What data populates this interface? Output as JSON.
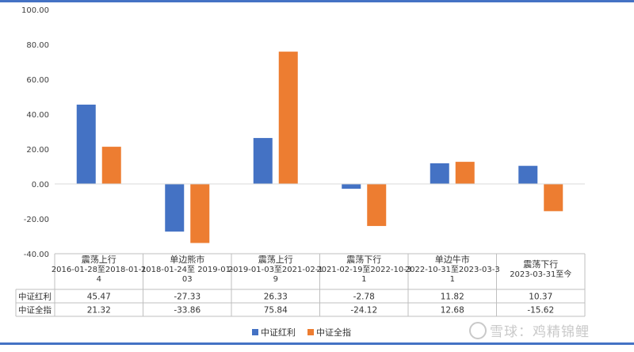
{
  "chart_data": {
    "type": "bar",
    "categories": [
      [
        "震荡上行",
        "2016-01-28至2018-01-1",
        "4"
      ],
      [
        "单边熊市",
        "2018-01-24至 2019-01-",
        "03"
      ],
      [
        "震荡上行",
        "2019-01-03至2021-02-1",
        "9"
      ],
      [
        "震荡下行",
        "2021-02-19至2022-10-3",
        "1"
      ],
      [
        "单边牛市",
        "2022-10-31至2023-03-3",
        "1"
      ],
      [
        "震荡下行",
        "2023-03-31至今"
      ]
    ],
    "series": [
      {
        "name": "中证红利",
        "color": "#4472c4",
        "values": [
          45.47,
          -27.33,
          26.33,
          -2.78,
          11.82,
          10.37
        ]
      },
      {
        "name": "中证全指",
        "color": "#ed7d31",
        "values": [
          21.32,
          -33.86,
          75.84,
          -24.12,
          12.68,
          -15.62
        ]
      }
    ],
    "value_labels": [
      [
        "45.47",
        "-27.33",
        "26.33",
        "-2.78",
        "11.82",
        "10.37"
      ],
      [
        "21.32",
        "-33.86",
        "75.84",
        "-24.12",
        "12.68",
        "-15.62"
      ]
    ],
    "ylim": [
      -40,
      100
    ],
    "yticks": [
      "100.00",
      "80.00",
      "60.00",
      "40.00",
      "20.00",
      "0.00",
      "-20.00",
      "-40.00"
    ],
    "ytick_values": [
      100,
      80,
      60,
      40,
      20,
      0,
      -20,
      -40
    ],
    "grid": false,
    "legend": "bottom",
    "data_table": true
  },
  "watermark": {
    "text": "雪球：鸡精锦鲤",
    "icon": "snowball-logo-icon"
  }
}
